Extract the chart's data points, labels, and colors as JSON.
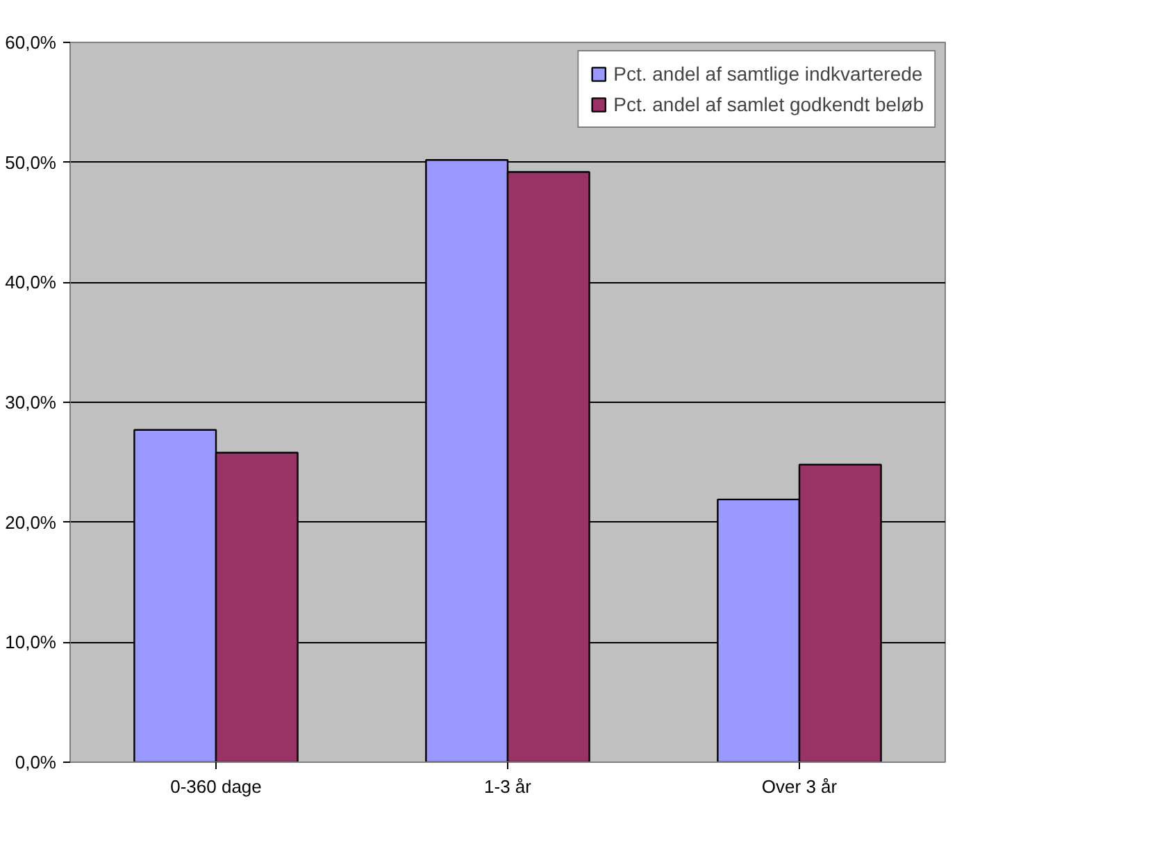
{
  "chart_data": {
    "type": "bar",
    "categories": [
      "0-360 dage",
      "1-3 år",
      "Over 3 år"
    ],
    "series": [
      {
        "name": "Pct. andel af samtlige indkvarterede",
        "color": "#9999ff",
        "values": [
          27.7,
          50.2,
          21.9
        ]
      },
      {
        "name": "Pct. andel af samlet godkendt beløb",
        "color": "#993366",
        "values": [
          25.8,
          49.2,
          24.8
        ]
      }
    ],
    "ylim": [
      0,
      60
    ],
    "yticks": [
      {
        "value": 0,
        "label": "0,0%"
      },
      {
        "value": 10,
        "label": "10,0%"
      },
      {
        "value": 20,
        "label": "20,0%"
      },
      {
        "value": 30,
        "label": "30,0%"
      },
      {
        "value": 40,
        "label": "40,0%"
      },
      {
        "value": 50,
        "label": "50,0%"
      },
      {
        "value": 60,
        "label": "60,0%"
      }
    ],
    "grid": "y",
    "legend": "top right"
  }
}
